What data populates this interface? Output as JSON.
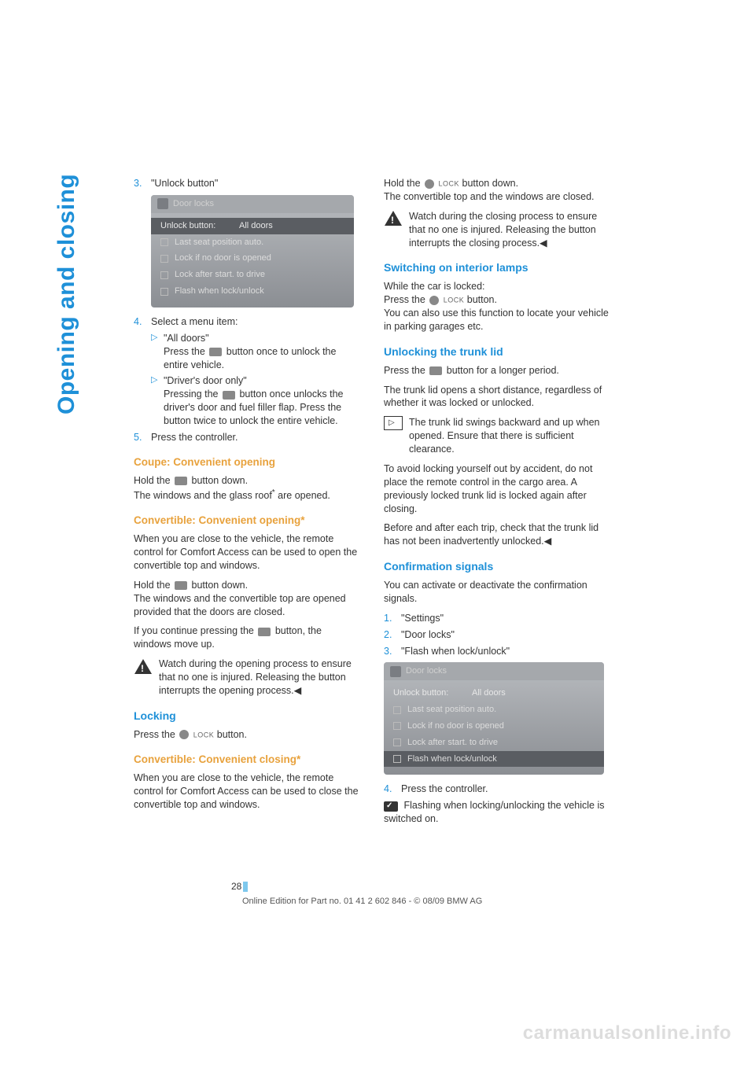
{
  "sidebarTitle": "Opening and closing",
  "pageNumber": "28",
  "footer": "Online Edition for Part no. 01 41 2 602 846 - © 08/09 BMW AG",
  "watermark": "carmanualsonline.info",
  "screenshot1": {
    "tabLabel": "Door locks",
    "fieldLabel": "Unlock button:",
    "fieldValue": "All doors",
    "opt1": "Last seat position auto.",
    "opt2": "Lock if no door is opened",
    "opt3": "Lock after start. to drive",
    "opt4": "Flash when lock/unlock"
  },
  "screenshot2": {
    "tabLabel": "Door locks",
    "fieldLabel": "Unlock button:",
    "fieldValue": "All doors",
    "opt1": "Last seat position auto.",
    "opt2": "Lock if no door is opened",
    "opt3": "Lock after start. to drive",
    "opt4": "Flash when lock/unlock"
  },
  "left": {
    "step3": {
      "num": "3.",
      "text": "\"Unlock button\""
    },
    "step4": {
      "num": "4.",
      "text": "Select a menu item:"
    },
    "step4a": {
      "marker": "▷",
      "title": "\"All doors\"",
      "body": "Press the   button once to unlock the entire vehicle."
    },
    "step4b": {
      "marker": "▷",
      "title": "\"Driver's door only\"",
      "body": "Pressing the   button once unlocks the driver's door and fuel filler flap. Press the button twice to unlock the entire vehicle."
    },
    "step5": {
      "num": "5.",
      "text": "Press the controller."
    },
    "h_coupe": "Coupe: Convenient opening",
    "coupe1": "Hold the   button down.",
    "coupe2": "The windows and the glass roof* are opened.",
    "h_convOpen": "Convertible: Convenient opening*",
    "convOpen1": "When you are close to the vehicle, the remote control for Comfort Access can be used to open the convertible top and windows.",
    "convOpen2": "Hold the   button down.",
    "convOpen3": "The windows and the convertible top are opened provided that the doors are closed.",
    "convOpen4": "If you continue pressing the   button, the windows move up.",
    "warnOpen": "Watch during the opening process to ensure that no one is injured. Releasing the button interrupts the opening process.◀",
    "h_locking": "Locking",
    "locking1_a": "Press the ",
    "locking1_b": " button.",
    "h_convClose": "Convertible: Convenient closing*",
    "convClose1": "When you are close to the vehicle, the remote control for Comfort Access can be used to close the convertible top and windows."
  },
  "right": {
    "hold1_a": "Hold the ",
    "hold1_b": " button down.",
    "hold2": "The convertible top and the windows are closed.",
    "warnClose": "Watch during the closing process to ensure that no one is injured. Releasing the button interrupts the closing process.◀",
    "h_lamps": "Switching on interior lamps",
    "lamps1": "While the car is locked:",
    "lamps2_a": "Press the ",
    "lamps2_b": " button.",
    "lamps3": "You can also use this function to locate your vehicle in parking garages etc.",
    "h_trunk": "Unlocking the trunk lid",
    "trunk1": "Press the   button for a longer period.",
    "trunk2": "The trunk lid opens a short distance, regardless of whether it was locked or unlocked.",
    "trunkNote": "The trunk lid swings backward and up when opened. Ensure that there is sufficient clearance.",
    "trunk3": "To avoid locking yourself out by accident, do not place the remote control in the cargo area. A previously locked trunk lid is locked again after closing.",
    "trunk4": "Before and after each trip, check that the trunk lid has not been inadvertently unlocked.◀",
    "h_confirm": "Confirmation signals",
    "confirm1": "You can activate or deactivate the confirmation signals.",
    "c1": {
      "num": "1.",
      "text": "\"Settings\""
    },
    "c2": {
      "num": "2.",
      "text": "\"Door locks\""
    },
    "c3": {
      "num": "3.",
      "text": "\"Flash when lock/unlock\""
    },
    "c4": {
      "num": "4.",
      "text": "Press the controller."
    },
    "confirmResult": " Flashing when locking/unlocking the vehicle is switched on."
  },
  "lockWord": "LOCK"
}
